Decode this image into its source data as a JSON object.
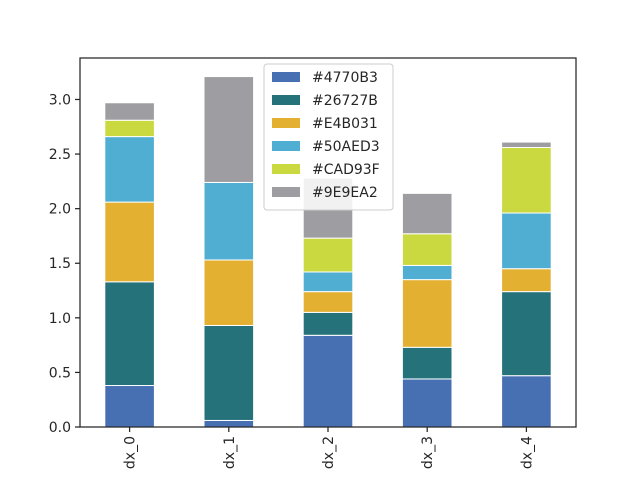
{
  "chart_data": {
    "type": "bar",
    "stacked": true,
    "categories": [
      "dx_0",
      "dx_1",
      "dx_2",
      "dx_3",
      "dx_4"
    ],
    "series": [
      {
        "name": "#4770B3",
        "color": "#4770B3",
        "values": [
          0.38,
          0.06,
          0.84,
          0.44,
          0.47
        ]
      },
      {
        "name": "#26727B",
        "color": "#26727B",
        "values": [
          0.95,
          0.87,
          0.21,
          0.29,
          0.77
        ]
      },
      {
        "name": "#E4B031",
        "color": "#E4B031",
        "values": [
          0.73,
          0.6,
          0.19,
          0.62,
          0.21
        ]
      },
      {
        "name": "#50AED3",
        "color": "#50AED3",
        "values": [
          0.6,
          0.71,
          0.18,
          0.13,
          0.51
        ]
      },
      {
        "name": "#CAD93F",
        "color": "#CAD93F",
        "values": [
          0.15,
          0.0,
          0.31,
          0.29,
          0.6
        ]
      },
      {
        "name": "#9E9EA2",
        "color": "#9E9EA2",
        "values": [
          0.16,
          0.97,
          0.55,
          0.37,
          0.05
        ]
      }
    ],
    "yticks": [
      "0.0",
      "0.5",
      "1.0",
      "1.5",
      "2.0",
      "2.5",
      "3.0"
    ],
    "ylim": [
      0,
      3.38
    ],
    "title": "",
    "xlabel": "",
    "ylabel": "",
    "grid": false,
    "legend_position": "top-center"
  }
}
